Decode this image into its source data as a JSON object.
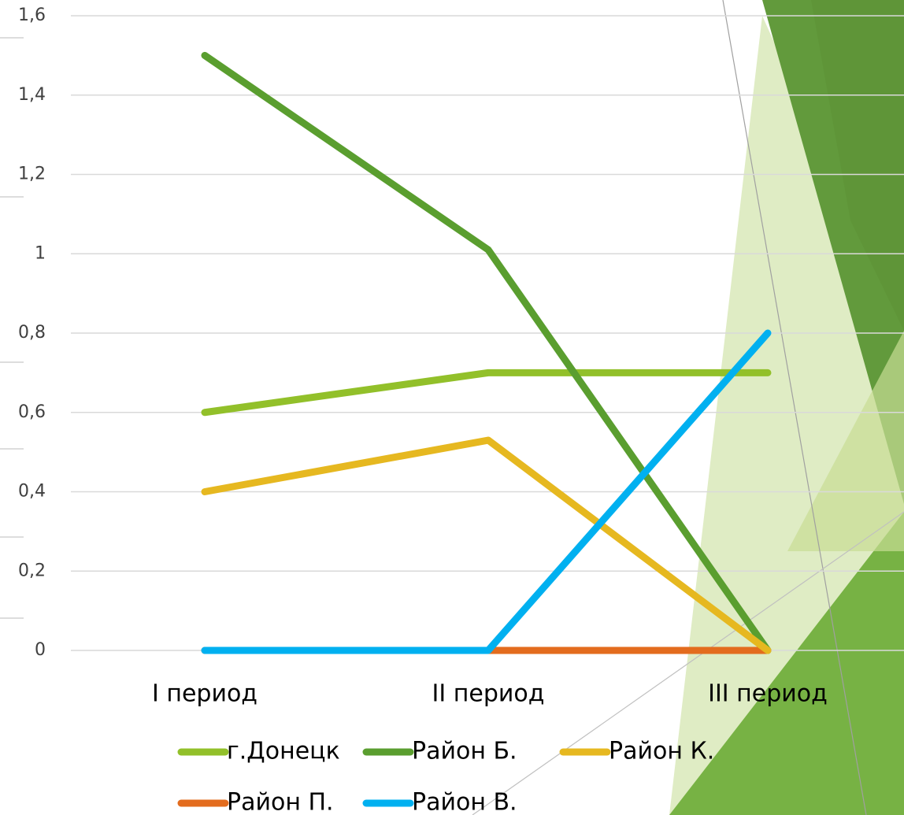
{
  "chart_data": {
    "type": "line",
    "categories": [
      "I период",
      "II период",
      "III период"
    ],
    "series": [
      {
        "name": "г.Донецк",
        "color": "#92c02a",
        "values": [
          0.6,
          0.7,
          0.7
        ]
      },
      {
        "name": "Район Б.",
        "color": "#5a9e2f",
        "values": [
          1.5,
          1.01,
          0
        ]
      },
      {
        "name": "Район К.",
        "color": "#e6b820",
        "values": [
          0.4,
          0.53,
          0
        ]
      },
      {
        "name": "Район П.",
        "color": "#e36c1e",
        "values": [
          0,
          0,
          0
        ]
      },
      {
        "name": "Район В.",
        "color": "#00b0f0",
        "values": [
          0,
          0,
          0.8
        ]
      }
    ],
    "ylim": [
      0,
      1.6
    ],
    "yticks": [
      0,
      {
        "value": 0.2,
        "label": "0,2"
      },
      {
        "value": 0.4,
        "label": "0,4"
      },
      {
        "value": 0.6,
        "label": "0,6"
      },
      {
        "value": 0.8,
        "label": "0,8"
      },
      1,
      {
        "value": 1.2,
        "label": "1,2"
      },
      {
        "value": 1.4,
        "label": "1,4"
      },
      {
        "value": 1.6,
        "label": "1,6"
      }
    ],
    "grid": true,
    "legend": "bottom"
  }
}
